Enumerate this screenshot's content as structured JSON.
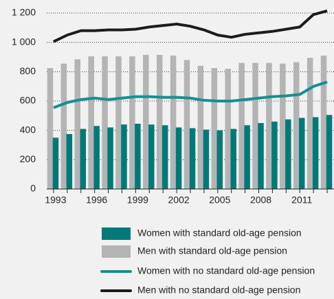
{
  "chart_data": {
    "type": "bar-line",
    "categories": [
      "1993",
      null,
      null,
      "1996",
      null,
      null,
      "1999",
      null,
      null,
      "2002",
      null,
      null,
      "2005",
      null,
      null,
      "2008",
      null,
      null,
      "2011",
      null,
      null
    ],
    "series": [
      {
        "name": "Women with standard old-age pension",
        "kind": "bar",
        "color": "#007a78",
        "values": [
          350,
          375,
          410,
          430,
          420,
          440,
          445,
          440,
          435,
          420,
          415,
          405,
          400,
          410,
          435,
          450,
          460,
          475,
          485,
          490,
          505
        ]
      },
      {
        "name": "Men with standard old-age pension",
        "kind": "bar",
        "color": "#b4b4b5",
        "values": [
          825,
          855,
          885,
          905,
          905,
          905,
          905,
          915,
          915,
          910,
          880,
          840,
          825,
          820,
          860,
          860,
          860,
          855,
          865,
          895,
          910
        ]
      },
      {
        "name": "Women with no standard old-age pension",
        "kind": "line",
        "color": "#14908f",
        "values": [
          555,
          590,
          610,
          620,
          610,
          620,
          630,
          630,
          625,
          625,
          620,
          605,
          600,
          600,
          610,
          620,
          630,
          635,
          645,
          700,
          730
        ]
      },
      {
        "name": "Men with no standard old-age pension",
        "kind": "line",
        "color": "#1c1c1c",
        "values": [
          1005,
          1050,
          1080,
          1080,
          1085,
          1085,
          1090,
          1105,
          1115,
          1125,
          1110,
          1085,
          1050,
          1035,
          1055,
          1065,
          1075,
          1090,
          1105,
          1190,
          1215
        ]
      }
    ],
    "ylim": [
      0,
      1200
    ],
    "yticks": [
      0,
      200,
      400,
      600,
      800,
      {
        "value": 1000,
        "label": "1 000"
      },
      {
        "value": 1200,
        "label": "1 200"
      }
    ],
    "grid": true
  }
}
